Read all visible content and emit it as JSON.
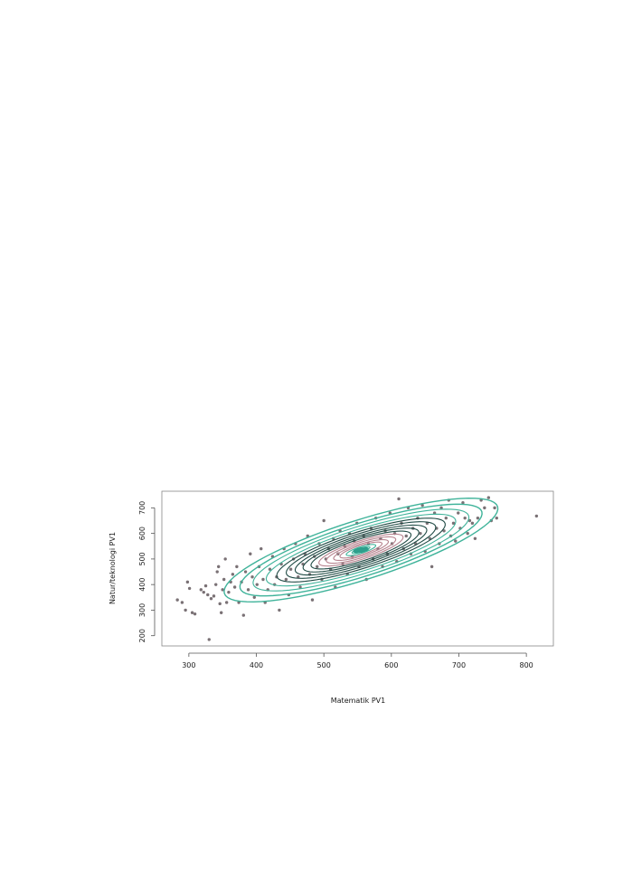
{
  "chart_data": {
    "type": "scatter",
    "title": "",
    "xlabel": "Matematik PV1",
    "ylabel": "Natur/teknologi PV1",
    "xlim": [
      260,
      840
    ],
    "ylim": [
      160,
      765
    ],
    "x_ticks": [
      300,
      400,
      500,
      600,
      700,
      800
    ],
    "y_ticks": [
      200,
      300,
      400,
      500,
      600,
      700
    ],
    "grid": false,
    "legend": "none",
    "colors": {
      "points": "#7a7175",
      "contour_light": "#3fb39a",
      "contour_dark": "#1f4a44",
      "contour_inner": "#b7838f",
      "center": "#2e9f8c",
      "frame": "#888888"
    },
    "density": {
      "center": [
        555,
        535
      ],
      "sd": [
        78,
        78
      ],
      "correlation": 0.8,
      "contour_levels_sd": [
        2.6,
        2.3,
        2.05,
        1.8,
        1.6,
        1.42,
        1.25,
        1.1,
        0.95,
        0.8,
        0.66,
        0.52,
        0.4,
        0.28,
        0.17
      ]
    },
    "points": [
      [
        283,
        340
      ],
      [
        290,
        330
      ],
      [
        295,
        300
      ],
      [
        298,
        410
      ],
      [
        301,
        385
      ],
      [
        305,
        290
      ],
      [
        309,
        285
      ],
      [
        318,
        380
      ],
      [
        322,
        370
      ],
      [
        325,
        395
      ],
      [
        328,
        360
      ],
      [
        330,
        185
      ],
      [
        333,
        345
      ],
      [
        337,
        355
      ],
      [
        340,
        400
      ],
      [
        342,
        450
      ],
      [
        344,
        470
      ],
      [
        346,
        325
      ],
      [
        348,
        290
      ],
      [
        350,
        380
      ],
      [
        352,
        420
      ],
      [
        354,
        500
      ],
      [
        356,
        330
      ],
      [
        359,
        370
      ],
      [
        362,
        410
      ],
      [
        365,
        440
      ],
      [
        368,
        390
      ],
      [
        371,
        470
      ],
      [
        374,
        330
      ],
      [
        378,
        410
      ],
      [
        381,
        280
      ],
      [
        384,
        450
      ],
      [
        388,
        380
      ],
      [
        391,
        520
      ],
      [
        394,
        430
      ],
      [
        397,
        350
      ],
      [
        401,
        400
      ],
      [
        404,
        470
      ],
      [
        407,
        540
      ],
      [
        410,
        420
      ],
      [
        413,
        330
      ],
      [
        417,
        380
      ],
      [
        420,
        460
      ],
      [
        424,
        510
      ],
      [
        427,
        400
      ],
      [
        430,
        430
      ],
      [
        434,
        300
      ],
      [
        437,
        480
      ],
      [
        441,
        540
      ],
      [
        444,
        420
      ],
      [
        448,
        360
      ],
      [
        451,
        460
      ],
      [
        455,
        500
      ],
      [
        458,
        560
      ],
      [
        462,
        430
      ],
      [
        465,
        390
      ],
      [
        469,
        480
      ],
      [
        472,
        520
      ],
      [
        476,
        590
      ],
      [
        479,
        440
      ],
      [
        483,
        340
      ],
      [
        486,
        510
      ],
      [
        490,
        470
      ],
      [
        493,
        560
      ],
      [
        497,
        420
      ],
      [
        500,
        650
      ],
      [
        503,
        500
      ],
      [
        507,
        540
      ],
      [
        510,
        460
      ],
      [
        514,
        580
      ],
      [
        517,
        390
      ],
      [
        521,
        520
      ],
      [
        524,
        610
      ],
      [
        528,
        480
      ],
      [
        531,
        550
      ],
      [
        535,
        440
      ],
      [
        538,
        600
      ],
      [
        542,
        510
      ],
      [
        545,
        570
      ],
      [
        549,
        640
      ],
      [
        552,
        470
      ],
      [
        556,
        530
      ],
      [
        559,
        590
      ],
      [
        563,
        420
      ],
      [
        566,
        560
      ],
      [
        570,
        620
      ],
      [
        573,
        500
      ],
      [
        577,
        660
      ],
      [
        580,
        540
      ],
      [
        584,
        580
      ],
      [
        587,
        470
      ],
      [
        591,
        610
      ],
      [
        594,
        520
      ],
      [
        598,
        680
      ],
      [
        601,
        560
      ],
      [
        605,
        600
      ],
      [
        608,
        490
      ],
      [
        611,
        735
      ],
      [
        615,
        640
      ],
      [
        618,
        540
      ],
      [
        622,
        590
      ],
      [
        625,
        700
      ],
      [
        629,
        520
      ],
      [
        632,
        620
      ],
      [
        636,
        560
      ],
      [
        639,
        660
      ],
      [
        643,
        600
      ],
      [
        646,
        710
      ],
      [
        650,
        530
      ],
      [
        653,
        640
      ],
      [
        657,
        580
      ],
      [
        660,
        470
      ],
      [
        664,
        680
      ],
      [
        667,
        620
      ],
      [
        671,
        560
      ],
      [
        674,
        700
      ],
      [
        678,
        610
      ],
      [
        681,
        660
      ],
      [
        685,
        730
      ],
      [
        688,
        590
      ],
      [
        692,
        640
      ],
      [
        695,
        570
      ],
      [
        699,
        680
      ],
      [
        702,
        620
      ],
      [
        706,
        720
      ],
      [
        709,
        660
      ],
      [
        713,
        600
      ],
      [
        716,
        650
      ],
      [
        720,
        640
      ],
      [
        724,
        580
      ],
      [
        728,
        660
      ],
      [
        733,
        730
      ],
      [
        738,
        700
      ],
      [
        744,
        740
      ],
      [
        748,
        650
      ],
      [
        753,
        700
      ],
      [
        756,
        660
      ],
      [
        815,
        668
      ]
    ]
  }
}
